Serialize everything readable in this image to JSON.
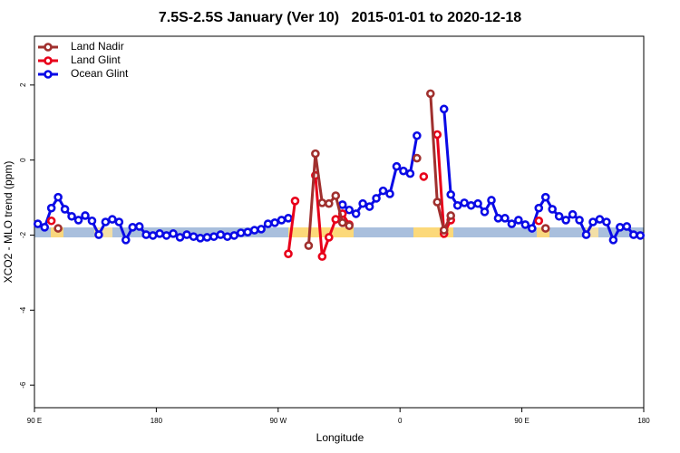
{
  "chart_data": {
    "type": "line",
    "title": "7.5S-2.5S January (Ver 10)   2015-01-01 to 2020-12-18",
    "x_label": "Longitude",
    "y_label": "XCO2 - MLO trend (ppm)",
    "legend": "top-left",
    "xlim": [
      90,
      540
    ],
    "ylim": [
      -6.6,
      3.3
    ],
    "xticks": [
      {
        "value": 90,
        "label": "90 E"
      },
      180,
      {
        "value": 270,
        "label": "90 W"
      },
      {
        "value": 360,
        "label": "0"
      },
      {
        "value": 450,
        "label": "90 E"
      },
      {
        "value": 540,
        "label": "180"
      }
    ],
    "yticks": [
      -6,
      -4,
      -2,
      0,
      2
    ],
    "x": [
      92.5,
      97.5,
      102.5,
      107.5,
      112.5,
      117.5,
      122.5,
      127.5,
      132.5,
      137.5,
      142.5,
      147.5,
      152.5,
      157.5,
      162.5,
      167.5,
      172.5,
      177.5,
      182.5,
      187.5,
      192.5,
      197.5,
      202.5,
      207.5,
      212.5,
      217.5,
      222.5,
      227.5,
      232.5,
      237.5,
      242.5,
      247.5,
      252.5,
      257.5,
      262.5,
      267.5,
      272.5,
      277.5,
      282.5,
      287.5,
      292.5,
      297.5,
      302.5,
      307.5,
      312.5,
      317.5,
      322.5,
      327.5,
      332.5,
      337.5,
      342.5,
      347.5,
      352.5,
      357.5,
      362.5,
      367.5,
      372.5,
      377.5,
      382.5,
      387.5,
      392.5,
      397.5,
      402.5,
      407.5,
      412.5,
      417.5,
      422.5,
      427.5,
      432.5,
      437.5,
      442.5,
      447.5,
      452.5,
      457.5,
      462.5,
      467.5,
      472.5,
      477.5,
      482.5,
      487.5,
      492.5,
      497.5,
      502.5,
      507.5,
      512.5,
      517.5,
      522.5,
      527.5,
      532.5,
      537.5
    ],
    "series": [
      {
        "name": "Land Nadir",
        "color": "#a0302e",
        "values": [
          null,
          null,
          null,
          -1.82,
          null,
          null,
          null,
          null,
          null,
          null,
          null,
          null,
          null,
          null,
          null,
          null,
          null,
          null,
          null,
          null,
          null,
          null,
          null,
          null,
          null,
          null,
          null,
          null,
          null,
          null,
          null,
          null,
          null,
          null,
          null,
          null,
          null,
          null,
          null,
          null,
          -2.28,
          0.17,
          -1.14,
          -1.16,
          -0.95,
          -1.67,
          -1.75,
          null,
          null,
          null,
          null,
          null,
          null,
          null,
          null,
          null,
          0.05,
          null,
          1.77,
          -1.12,
          -1.87,
          -1.48,
          null,
          null,
          null,
          null,
          null,
          null,
          null,
          null,
          null,
          null,
          null,
          null,
          null,
          -1.82,
          null,
          null,
          null,
          null,
          null,
          null,
          null,
          null,
          null,
          null,
          null,
          null,
          null,
          null
        ]
      },
      {
        "name": "Land Glint",
        "color": "#e8001a",
        "values": [
          null,
          null,
          -1.62,
          null,
          null,
          null,
          null,
          null,
          null,
          null,
          null,
          null,
          null,
          null,
          null,
          null,
          null,
          null,
          null,
          null,
          null,
          null,
          null,
          null,
          null,
          null,
          null,
          null,
          null,
          null,
          null,
          null,
          null,
          null,
          null,
          null,
          null,
          -2.5,
          -1.09,
          null,
          null,
          -0.41,
          -2.57,
          -2.06,
          -1.58,
          -1.43,
          -1.72,
          null,
          null,
          null,
          null,
          null,
          null,
          null,
          null,
          null,
          null,
          -0.44,
          null,
          0.68,
          -1.96,
          -1.6,
          null,
          null,
          null,
          null,
          null,
          null,
          null,
          null,
          null,
          null,
          null,
          null,
          -1.62,
          null,
          null,
          null,
          null,
          null,
          null,
          null,
          null,
          null,
          null,
          null,
          null,
          null,
          null,
          null
        ]
      },
      {
        "name": "Ocean Glint",
        "color": "#0a0ae6",
        "values": [
          -1.7,
          -1.79,
          -1.28,
          -0.99,
          -1.31,
          -1.5,
          -1.6,
          -1.48,
          -1.62,
          -1.99,
          -1.65,
          -1.58,
          -1.65,
          -2.13,
          -1.79,
          -1.77,
          -1.99,
          -2.01,
          -1.96,
          -2.01,
          -1.96,
          -2.06,
          -1.99,
          -2.04,
          -2.08,
          -2.06,
          -2.04,
          -1.99,
          -2.04,
          -2.01,
          -1.94,
          -1.92,
          -1.87,
          -1.84,
          -1.7,
          -1.67,
          -1.6,
          -1.55,
          null,
          null,
          null,
          null,
          null,
          null,
          null,
          -1.19,
          -1.33,
          -1.43,
          -1.16,
          -1.24,
          -1.02,
          -0.82,
          -0.9,
          -0.17,
          -0.29,
          -0.36,
          0.65,
          null,
          null,
          null,
          1.36,
          -0.92,
          -1.21,
          -1.14,
          -1.21,
          -1.16,
          -1.38,
          -1.07,
          -1.55,
          -1.55,
          -1.7,
          -1.6,
          -1.72,
          -1.82,
          -1.28,
          -0.99,
          -1.31,
          -1.5,
          -1.6,
          -1.45,
          -1.6,
          -1.99,
          -1.65,
          -1.58,
          -1.65,
          -2.13,
          -1.79,
          -1.77,
          -1.99,
          -2.01
        ]
      }
    ]
  }
}
